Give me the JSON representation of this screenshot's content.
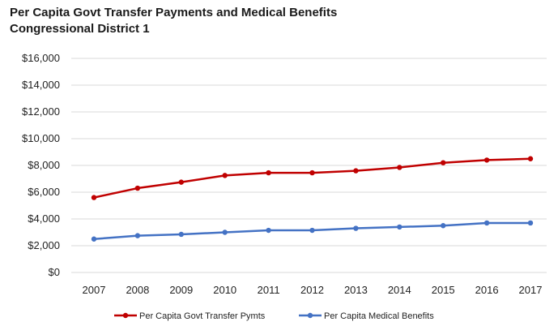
{
  "chart_data": {
    "type": "line",
    "title": "Per Capita Govt Transfer Payments and Medical Benefits",
    "subtitle": "Congressional District 1",
    "categories": [
      "2007",
      "2008",
      "2009",
      "2010",
      "2011",
      "2012",
      "2013",
      "2014",
      "2015",
      "2016",
      "2017"
    ],
    "series": [
      {
        "name": "Per Capita Govt Transfer Pymts",
        "color": "#c00000",
        "values": [
          5600,
          6300,
          6750,
          7250,
          7450,
          7450,
          7600,
          7850,
          8200,
          8400,
          8500
        ]
      },
      {
        "name": "Per Capita Medical Benefits",
        "color": "#4472c4",
        "values": [
          2500,
          2750,
          2850,
          3000,
          3150,
          3150,
          3300,
          3400,
          3500,
          3700,
          3700
        ]
      }
    ],
    "ylim": [
      0,
      16000
    ],
    "yticks": [
      0,
      2000,
      4000,
      6000,
      8000,
      10000,
      12000,
      14000,
      16000
    ],
    "ytick_labels": [
      "$0",
      "$2,000",
      "$4,000",
      "$6,000",
      "$8,000",
      "$10,000",
      "$12,000",
      "$14,000",
      "$16,000"
    ],
    "grid": true,
    "legend": "bottom"
  }
}
